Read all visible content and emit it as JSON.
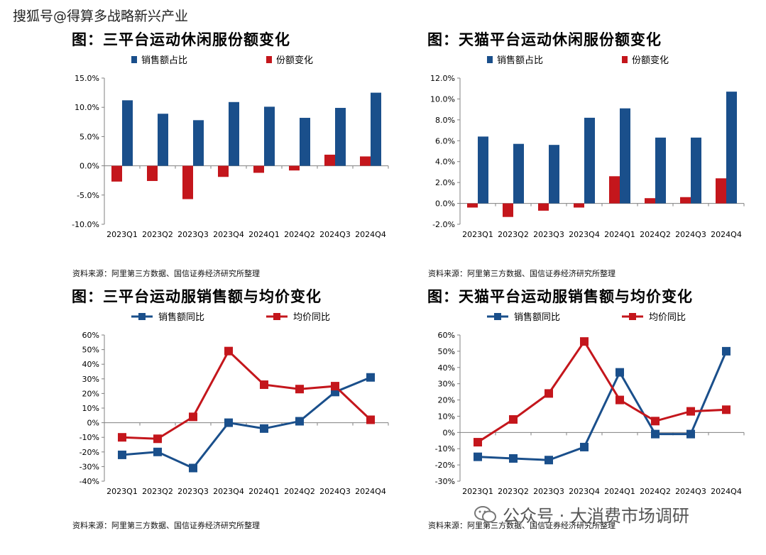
{
  "watermark": "搜狐号@得算多战略新兴产业",
  "footer_brand": "公众号 · 大消费市场调研",
  "colors": {
    "blue": "#1a4f8b",
    "red": "#c4161c",
    "axis": "#808080"
  },
  "panels": [
    {
      "title": "图：三平台运动休闲服份额变化",
      "source": "资料来源：阿里第三方数据、国信证券经济研究所整理",
      "chart_data": {
        "type": "bar",
        "title": "图：三平台运动休闲服份额变化",
        "categories": [
          "2023Q1",
          "2023Q2",
          "2023Q3",
          "2023Q4",
          "2024Q1",
          "2024Q2",
          "2024Q3",
          "2024Q4"
        ],
        "series": [
          {
            "name": "销售额占比",
            "values": [
              11.2,
              8.9,
              7.8,
              10.9,
              10.1,
              8.2,
              9.9,
              12.5
            ]
          },
          {
            "name": "份额变化",
            "values": [
              -2.7,
              -2.6,
              -5.7,
              -1.9,
              -1.2,
              -0.8,
              1.9,
              1.6
            ]
          }
        ],
        "ylim": [
          -10,
          15
        ],
        "yticks": [
          -10,
          -5,
          0,
          5,
          10,
          15
        ],
        "ytick_labels": [
          "-10.0%",
          "-5.0%",
          "0.0%",
          "5.0%",
          "10.0%",
          "15.0%"
        ],
        "legend_position": "top"
      }
    },
    {
      "title": "图：天猫平台运动休闲服份额变化",
      "source": "资料来源：阿里第三方数据、国信证券经济研究所整理",
      "chart_data": {
        "type": "bar",
        "title": "图：天猫平台运动休闲服份额变化",
        "categories": [
          "2023Q1",
          "2023Q2",
          "2023Q3",
          "2023Q4",
          "2024Q1",
          "2024Q2",
          "2024Q3",
          "2024Q4"
        ],
        "series": [
          {
            "name": "销售额占比",
            "values": [
              6.4,
              5.7,
              5.6,
              8.2,
              9.1,
              6.3,
              6.3,
              10.7
            ]
          },
          {
            "name": "份额变化",
            "values": [
              -0.4,
              -1.3,
              -0.7,
              -0.4,
              2.6,
              0.5,
              0.6,
              2.4
            ]
          }
        ],
        "ylim": [
          -2,
          12
        ],
        "yticks": [
          -2,
          0,
          2,
          4,
          6,
          8,
          10,
          12
        ],
        "ytick_labels": [
          "-2.0%",
          "0.0%",
          "2.0%",
          "4.0%",
          "6.0%",
          "8.0%",
          "10.0%",
          "12.0%"
        ],
        "legend_position": "top"
      }
    },
    {
      "title": "图：三平台运动服销售额与均价变化",
      "source": "资料来源：阿里第三方数据、国信证券经济研究所整理",
      "chart_data": {
        "type": "line",
        "title": "图：三平台运动服销售额与均价变化",
        "categories": [
          "2023Q1",
          "2023Q2",
          "2023Q3",
          "2023Q4",
          "2024Q1",
          "2024Q2",
          "2024Q3",
          "2024Q4"
        ],
        "series": [
          {
            "name": "销售额同比",
            "values": [
              -22,
              -20,
              -31,
              0,
              -4,
              1,
              21,
              31
            ]
          },
          {
            "name": "均价同比",
            "values": [
              -10,
              -11,
              4,
              49,
              26,
              23,
              25,
              2
            ]
          }
        ],
        "ylim": [
          -40,
          60
        ],
        "yticks": [
          -40,
          -30,
          -20,
          -10,
          0,
          10,
          20,
          30,
          40,
          50,
          60
        ],
        "ytick_labels": [
          "-40%",
          "-30%",
          "-20%",
          "-10%",
          "0%",
          "10%",
          "20%",
          "30%",
          "40%",
          "50%",
          "60%"
        ],
        "legend_position": "top"
      }
    },
    {
      "title": "图：天猫平台运动服销售额与均价变化",
      "source": "资料来源：阿里第三方数据、国信证券经济研究所整理",
      "chart_data": {
        "type": "line",
        "title": "图：天猫平台运动服销售额与均价变化",
        "categories": [
          "2023Q1",
          "2023Q2",
          "2023Q3",
          "2023Q4",
          "2024Q1",
          "2024Q2",
          "2024Q3",
          "2024Q4"
        ],
        "series": [
          {
            "name": "销售额同比",
            "values": [
              -15,
              -16,
              -17,
              -9,
              37,
              -1,
              -1,
              50
            ]
          },
          {
            "name": "均价同比",
            "values": [
              -6,
              8,
              24,
              56,
              20,
              7,
              13,
              14
            ]
          }
        ],
        "ylim": [
          -30,
          60
        ],
        "yticks": [
          -30,
          -20,
          -10,
          0,
          10,
          20,
          30,
          40,
          50,
          60
        ],
        "ytick_labels": [
          "-30%",
          "-20%",
          "-10%",
          "0%",
          "10%",
          "20%",
          "30%",
          "40%",
          "50%",
          "60%"
        ],
        "legend_position": "top"
      }
    }
  ]
}
